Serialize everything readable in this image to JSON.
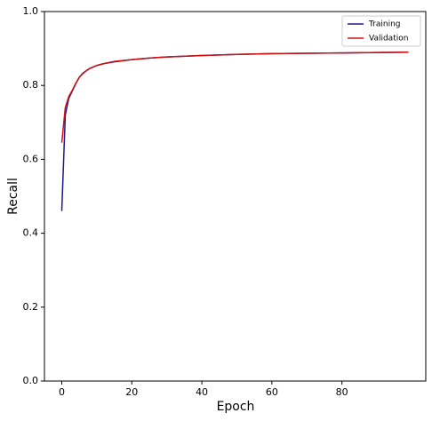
{
  "chart_data": {
    "type": "line",
    "x_label": "Epoch",
    "y_label": "Recall",
    "x": [
      0,
      1,
      2,
      3,
      4,
      5,
      6,
      7,
      8,
      10,
      12,
      15,
      20,
      25,
      30,
      40,
      50,
      60,
      70,
      80,
      90,
      99
    ],
    "series": [
      {
        "name": "Training",
        "color": "#1a1a8c",
        "values": [
          0.46,
          0.72,
          0.765,
          0.785,
          0.805,
          0.822,
          0.833,
          0.84,
          0.846,
          0.854,
          0.859,
          0.864,
          0.87,
          0.874,
          0.877,
          0.881,
          0.884,
          0.886,
          0.887,
          0.888,
          0.889,
          0.89
        ]
      },
      {
        "name": "Validation",
        "color": "#d01010",
        "values": [
          0.645,
          0.74,
          0.77,
          0.787,
          0.806,
          0.822,
          0.832,
          0.84,
          0.846,
          0.854,
          0.859,
          0.865,
          0.87,
          0.874,
          0.877,
          0.881,
          0.884,
          0.886,
          0.887,
          0.888,
          0.889,
          0.89
        ]
      }
    ],
    "xlim": [
      -4.95,
      103.95
    ],
    "ylim": [
      0,
      1
    ],
    "xticks": [
      0,
      20,
      40,
      60,
      80
    ],
    "yticks": [
      {
        "value": 0,
        "label": "0.0"
      },
      0.2,
      0.4,
      0.6,
      0.8,
      {
        "value": 1,
        "label": "1.0"
      }
    ],
    "legend": "upper right",
    "grid": false
  }
}
